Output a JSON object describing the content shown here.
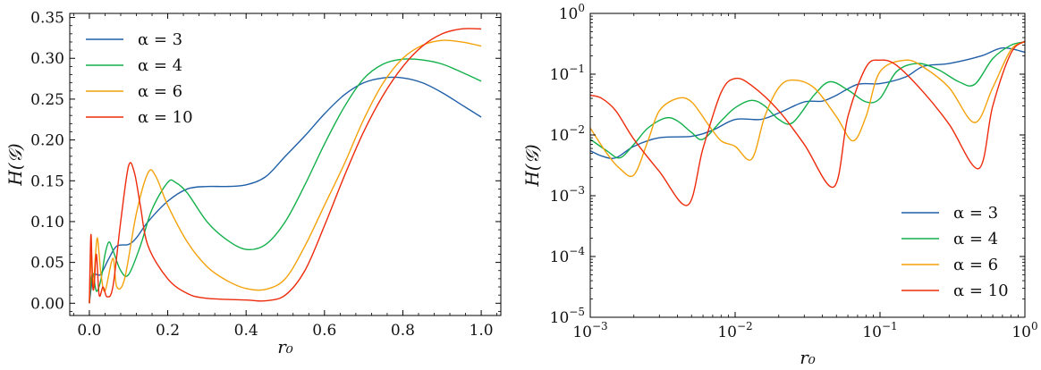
{
  "chart_data": [
    {
      "type": "line",
      "xscale": "linear",
      "yscale": "linear",
      "xlabel": "r₀",
      "ylabel": "H(𝒢)",
      "xlim": [
        -0.05,
        1.05
      ],
      "ylim": [
        -0.015,
        0.355
      ],
      "xticks": [
        0.0,
        0.2,
        0.4,
        0.6,
        0.8,
        1.0
      ],
      "xtick_labels": [
        "0.0",
        "0.2",
        "0.4",
        "0.6",
        "0.8",
        "1.0"
      ],
      "yticks": [
        0.0,
        0.05,
        0.1,
        0.15,
        0.2,
        0.25,
        0.3,
        0.35
      ],
      "ytick_labels": [
        "0.00",
        "0.05",
        "0.10",
        "0.15",
        "0.20",
        "0.25",
        "0.30",
        "0.35"
      ],
      "legend_position": "top-left",
      "series": [
        {
          "name": "α = 3",
          "color": "#1f5fa8",
          "x": [
            0,
            0.005,
            0.01,
            0.02,
            0.03,
            0.05,
            0.07,
            0.1,
            0.12,
            0.15,
            0.2,
            0.25,
            0.3,
            0.35,
            0.4,
            0.45,
            0.5,
            0.55,
            0.6,
            0.65,
            0.7,
            0.75,
            0.8,
            0.85,
            0.9,
            0.95,
            1.0
          ],
          "y": [
            0.0,
            0.02,
            0.035,
            0.035,
            0.036,
            0.055,
            0.07,
            0.072,
            0.08,
            0.1,
            0.125,
            0.14,
            0.143,
            0.143,
            0.145,
            0.155,
            0.18,
            0.205,
            0.232,
            0.255,
            0.27,
            0.276,
            0.276,
            0.27,
            0.258,
            0.243,
            0.228
          ]
        },
        {
          "name": "α = 4",
          "color": "#12b04a",
          "x": [
            0,
            0.005,
            0.01,
            0.015,
            0.02,
            0.03,
            0.04,
            0.05,
            0.06,
            0.08,
            0.1,
            0.13,
            0.16,
            0.2,
            0.22,
            0.25,
            0.3,
            0.35,
            0.4,
            0.45,
            0.5,
            0.55,
            0.6,
            0.65,
            0.7,
            0.75,
            0.8,
            0.85,
            0.9,
            0.95,
            1.0
          ],
          "y": [
            0.0,
            0.03,
            0.036,
            0.02,
            0.015,
            0.03,
            0.06,
            0.075,
            0.065,
            0.04,
            0.035,
            0.07,
            0.115,
            0.148,
            0.148,
            0.135,
            0.1,
            0.078,
            0.066,
            0.072,
            0.1,
            0.145,
            0.195,
            0.24,
            0.275,
            0.293,
            0.299,
            0.298,
            0.293,
            0.283,
            0.272
          ]
        },
        {
          "name": "α = 6",
          "color": "#f4a20a",
          "x": [
            0,
            0.005,
            0.01,
            0.015,
            0.02,
            0.025,
            0.03,
            0.04,
            0.06,
            0.07,
            0.09,
            0.12,
            0.15,
            0.17,
            0.2,
            0.25,
            0.3,
            0.35,
            0.4,
            0.45,
            0.5,
            0.55,
            0.6,
            0.65,
            0.7,
            0.75,
            0.8,
            0.85,
            0.9,
            0.95,
            1.0
          ],
          "y": [
            0.0,
            0.06,
            0.02,
            0.055,
            0.08,
            0.06,
            0.035,
            0.015,
            0.055,
            0.02,
            0.03,
            0.11,
            0.16,
            0.155,
            0.12,
            0.075,
            0.045,
            0.028,
            0.018,
            0.017,
            0.03,
            0.07,
            0.12,
            0.17,
            0.225,
            0.27,
            0.3,
            0.316,
            0.322,
            0.32,
            0.315
          ]
        },
        {
          "name": "α = 10",
          "color": "#ee2b0c",
          "x": [
            0,
            0.004,
            0.008,
            0.012,
            0.018,
            0.025,
            0.035,
            0.045,
            0.06,
            0.08,
            0.1,
            0.115,
            0.13,
            0.15,
            0.2,
            0.25,
            0.3,
            0.4,
            0.45,
            0.5,
            0.55,
            0.6,
            0.65,
            0.7,
            0.75,
            0.8,
            0.85,
            0.9,
            0.95,
            1.0
          ],
          "y": [
            0.0,
            0.084,
            0.025,
            0.02,
            0.06,
            0.01,
            0.02,
            0.008,
            0.02,
            0.1,
            0.168,
            0.16,
            0.12,
            0.07,
            0.03,
            0.012,
            0.006,
            0.004,
            0.003,
            0.01,
            0.04,
            0.095,
            0.155,
            0.21,
            0.255,
            0.29,
            0.315,
            0.33,
            0.336,
            0.336
          ]
        }
      ]
    },
    {
      "type": "line",
      "xscale": "log",
      "yscale": "log",
      "xlabel": "r₀",
      "ylabel": "H(𝒢)",
      "xlim": [
        0.001,
        1
      ],
      "ylim": [
        1e-05,
        1
      ],
      "xticks": [
        0.001,
        0.01,
        0.1,
        1
      ],
      "xtick_labels": [
        [
          "10",
          "−3"
        ],
        [
          "10",
          "−2"
        ],
        [
          "10",
          "−1"
        ],
        [
          "10",
          "0"
        ]
      ],
      "yticks": [
        1e-05,
        0.0001,
        0.001,
        0.01,
        0.1,
        1
      ],
      "ytick_labels": [
        [
          "10",
          "−5"
        ],
        [
          "10",
          "−4"
        ],
        [
          "10",
          "−3"
        ],
        [
          "10",
          "−2"
        ],
        [
          "10",
          "−1"
        ],
        [
          "10",
          "0"
        ]
      ],
      "legend_position": "bottom-right",
      "series": [
        {
          "name": "α = 3",
          "color": "#1f5fa8",
          "x": [
            0.001,
            0.0012,
            0.0015,
            0.002,
            0.003,
            0.005,
            0.007,
            0.01,
            0.015,
            0.02,
            0.03,
            0.04,
            0.05,
            0.07,
            0.1,
            0.15,
            0.2,
            0.3,
            0.5,
            0.7,
            1.0
          ],
          "y": [
            0.0055,
            0.0045,
            0.0042,
            0.0065,
            0.009,
            0.0095,
            0.012,
            0.018,
            0.018,
            0.023,
            0.035,
            0.036,
            0.045,
            0.068,
            0.07,
            0.09,
            0.135,
            0.15,
            0.2,
            0.27,
            0.23
          ]
        },
        {
          "name": "α = 4",
          "color": "#12b04a",
          "x": [
            0.001,
            0.0013,
            0.0016,
            0.002,
            0.0025,
            0.0033,
            0.004,
            0.005,
            0.006,
            0.008,
            0.01,
            0.013,
            0.016,
            0.02,
            0.025,
            0.035,
            0.045,
            0.06,
            0.08,
            0.1,
            0.13,
            0.18,
            0.25,
            0.35,
            0.45,
            0.6,
            0.8,
            1.0
          ],
          "y": [
            0.0085,
            0.0055,
            0.0042,
            0.007,
            0.013,
            0.019,
            0.017,
            0.011,
            0.0085,
            0.017,
            0.028,
            0.037,
            0.03,
            0.018,
            0.016,
            0.045,
            0.075,
            0.055,
            0.035,
            0.04,
            0.11,
            0.15,
            0.12,
            0.075,
            0.068,
            0.18,
            0.3,
            0.34
          ]
        },
        {
          "name": "α = 6",
          "color": "#f4a20a",
          "x": [
            0.001,
            0.0013,
            0.0016,
            0.002,
            0.0025,
            0.003,
            0.004,
            0.005,
            0.0065,
            0.008,
            0.01,
            0.013,
            0.016,
            0.02,
            0.025,
            0.035,
            0.05,
            0.065,
            0.08,
            0.1,
            0.15,
            0.2,
            0.3,
            0.45,
            0.6,
            0.8,
            1.0
          ],
          "y": [
            0.013,
            0.005,
            0.0028,
            0.0022,
            0.008,
            0.025,
            0.04,
            0.035,
            0.015,
            0.008,
            0.0065,
            0.004,
            0.02,
            0.06,
            0.08,
            0.06,
            0.02,
            0.008,
            0.02,
            0.11,
            0.17,
            0.13,
            0.06,
            0.016,
            0.06,
            0.25,
            0.34
          ]
        },
        {
          "name": "α = 10",
          "color": "#ee2b0c",
          "x": [
            0.001,
            0.0012,
            0.0015,
            0.002,
            0.003,
            0.0047,
            0.006,
            0.008,
            0.01,
            0.013,
            0.02,
            0.03,
            0.048,
            0.06,
            0.08,
            0.1,
            0.13,
            0.2,
            0.3,
            0.48,
            0.6,
            0.8,
            1.0
          ],
          "y": [
            0.045,
            0.04,
            0.025,
            0.0085,
            0.0025,
            0.0007,
            0.006,
            0.05,
            0.085,
            0.065,
            0.025,
            0.007,
            0.0014,
            0.02,
            0.13,
            0.17,
            0.14,
            0.05,
            0.015,
            0.0028,
            0.03,
            0.22,
            0.35
          ]
        }
      ]
    }
  ]
}
